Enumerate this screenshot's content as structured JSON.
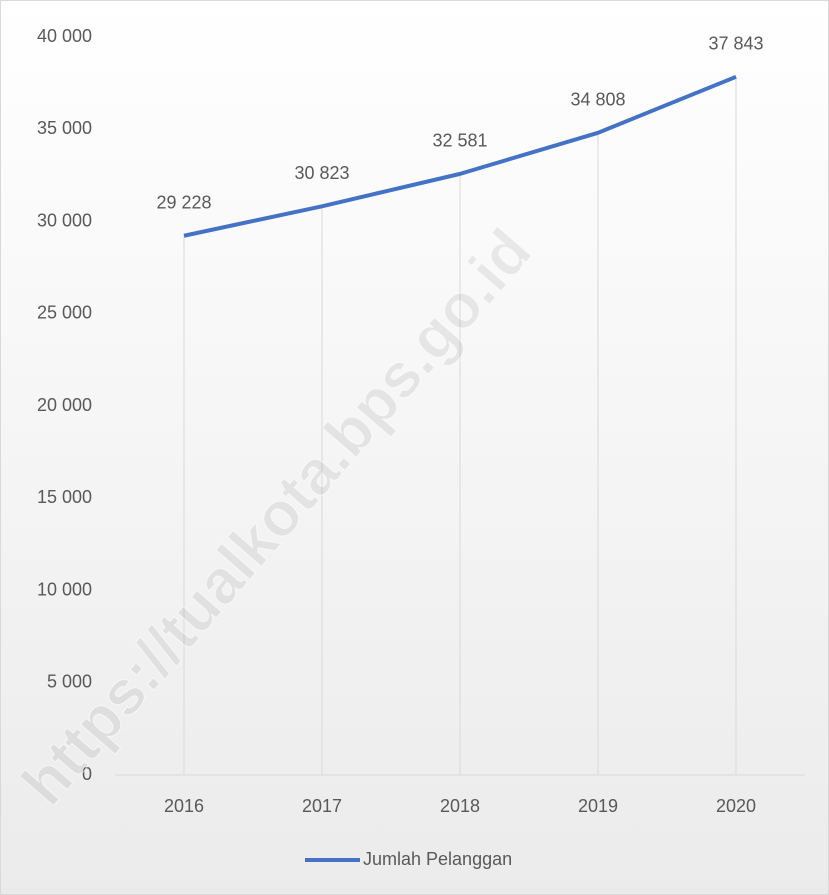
{
  "chart_data": {
    "type": "line",
    "categories": [
      "2016",
      "2017",
      "2018",
      "2019",
      "2020"
    ],
    "series": [
      {
        "name": "Jumlah Pelanggan",
        "color": "#4472c4",
        "values": [
          29228,
          30823,
          32581,
          34808,
          37843
        ],
        "value_labels": [
          "29 228",
          "30 823",
          "32 581",
          "34 808",
          "37 843"
        ]
      }
    ],
    "ylim": [
      0,
      40000
    ],
    "yticks": [
      0,
      {
        "value": 5000,
        "label": "5 000"
      },
      {
        "value": 10000,
        "label": "10 000"
      },
      {
        "value": 15000,
        "label": "15 000"
      },
      {
        "value": 20000,
        "label": "20 000"
      },
      {
        "value": 25000,
        "label": "25 000"
      },
      {
        "value": 30000,
        "label": "30 000"
      },
      {
        "value": 35000,
        "label": "35 000"
      },
      {
        "value": 40000,
        "label": "40 000"
      }
    ],
    "drop_lines": true,
    "legend": "bottom",
    "watermark": "https://tualkota.bps.go.id"
  }
}
